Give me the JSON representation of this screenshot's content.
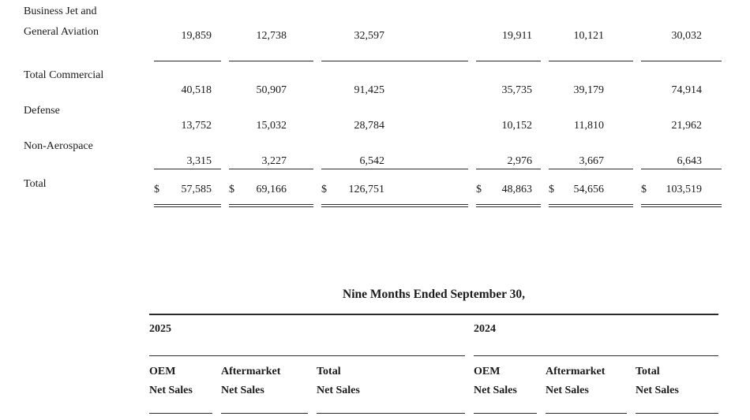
{
  "colors": {
    "background": "#ffffff",
    "text": "#1a1a1a",
    "rule": "#2b2b2b"
  },
  "segment_table": {
    "row_business_jet": {
      "label_line1": "Business Jet and",
      "label_line2": "General Aviation",
      "values": [
        "19,859",
        "12,738",
        "32,597",
        "19,911",
        "10,121",
        "30,032"
      ]
    },
    "row_total_commercial": {
      "label": "Total Commercial",
      "values": [
        "40,518",
        "50,907",
        "91,425",
        "35,735",
        "39,179",
        "74,914"
      ]
    },
    "row_defense": {
      "label": "Defense",
      "values": [
        "13,752",
        "15,032",
        "28,784",
        "10,152",
        "11,810",
        "21,962"
      ]
    },
    "row_non_aerospace": {
      "label": "Non-Aerospace",
      "values": [
        "3,315",
        "3,227",
        "6,542",
        "2,976",
        "3,667",
        "6,643"
      ]
    },
    "row_total": {
      "label": "Total",
      "currency_symbol": "$",
      "values": [
        "57,585",
        "69,166",
        "126,751",
        "48,863",
        "54,656",
        "103,519"
      ]
    }
  },
  "nine_months_header": {
    "title": "Nine Months Ended September 30,",
    "years": [
      "2025",
      "2024"
    ],
    "columns": [
      {
        "line1": "OEM",
        "line2": "Net Sales"
      },
      {
        "line1": "Aftermarket",
        "line2": "Net Sales"
      },
      {
        "line1": "Total",
        "line2": "Net Sales"
      },
      {
        "line1": "OEM",
        "line2": "Net Sales"
      },
      {
        "line1": "Aftermarket",
        "line2": "Net Sales"
      },
      {
        "line1": "Total",
        "line2": "Net Sales"
      }
    ]
  }
}
